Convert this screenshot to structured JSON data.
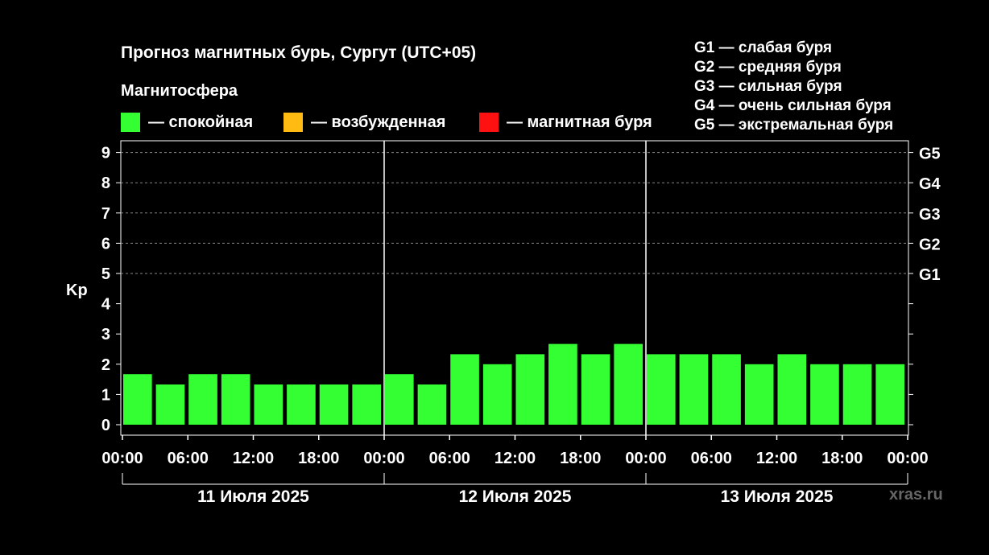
{
  "title": "Прогноз магнитных бурь, Сургут (UTC+05)",
  "subtitle": "Магнитосфера",
  "legend": [
    {
      "label": "— спокойная",
      "color": "#33ff33"
    },
    {
      "label": "— возбужденная",
      "color": "#ffbb11"
    },
    {
      "label": "— магнитная буря",
      "color": "#ff1111"
    }
  ],
  "g_levels": [
    "G1 — слабая буря",
    "G2 — средняя буря",
    "G3 — сильная буря",
    "G4 — очень сильная буря",
    "G5 — экстремальная буря"
  ],
  "watermark": "xras.ru",
  "chart_data": {
    "type": "bar",
    "ylabel": "Kp",
    "ylim": [
      0,
      9
    ],
    "yticks": [
      "0",
      "1",
      "2",
      "3",
      "4",
      "5",
      "6",
      "7",
      "8",
      "9"
    ],
    "right_axis": [
      {
        "value": 5,
        "label": "G1"
      },
      {
        "value": 6,
        "label": "G2"
      },
      {
        "value": 7,
        "label": "G3"
      },
      {
        "value": 8,
        "label": "G4"
      },
      {
        "value": 9,
        "label": "G5"
      }
    ],
    "grid": "dashed horizontal at 5–9",
    "xtick_labels": [
      "00:00",
      "06:00",
      "12:00",
      "18:00",
      "00:00",
      "06:00",
      "12:00",
      "18:00",
      "00:00",
      "06:00",
      "12:00",
      "18:00",
      "00:00"
    ],
    "days": [
      "11 Июля 2025",
      "12 Июля 2025",
      "13 Июля 2025"
    ],
    "interval_hours": 3,
    "values": [
      1.67,
      1.33,
      1.67,
      1.67,
      1.33,
      1.33,
      1.33,
      1.33,
      1.67,
      1.33,
      2.33,
      2.0,
      2.33,
      2.67,
      2.33,
      2.67,
      2.33,
      2.33,
      2.33,
      2.0,
      2.33,
      2.0,
      2.0,
      2.0
    ],
    "bar_color": "#33ff33"
  }
}
